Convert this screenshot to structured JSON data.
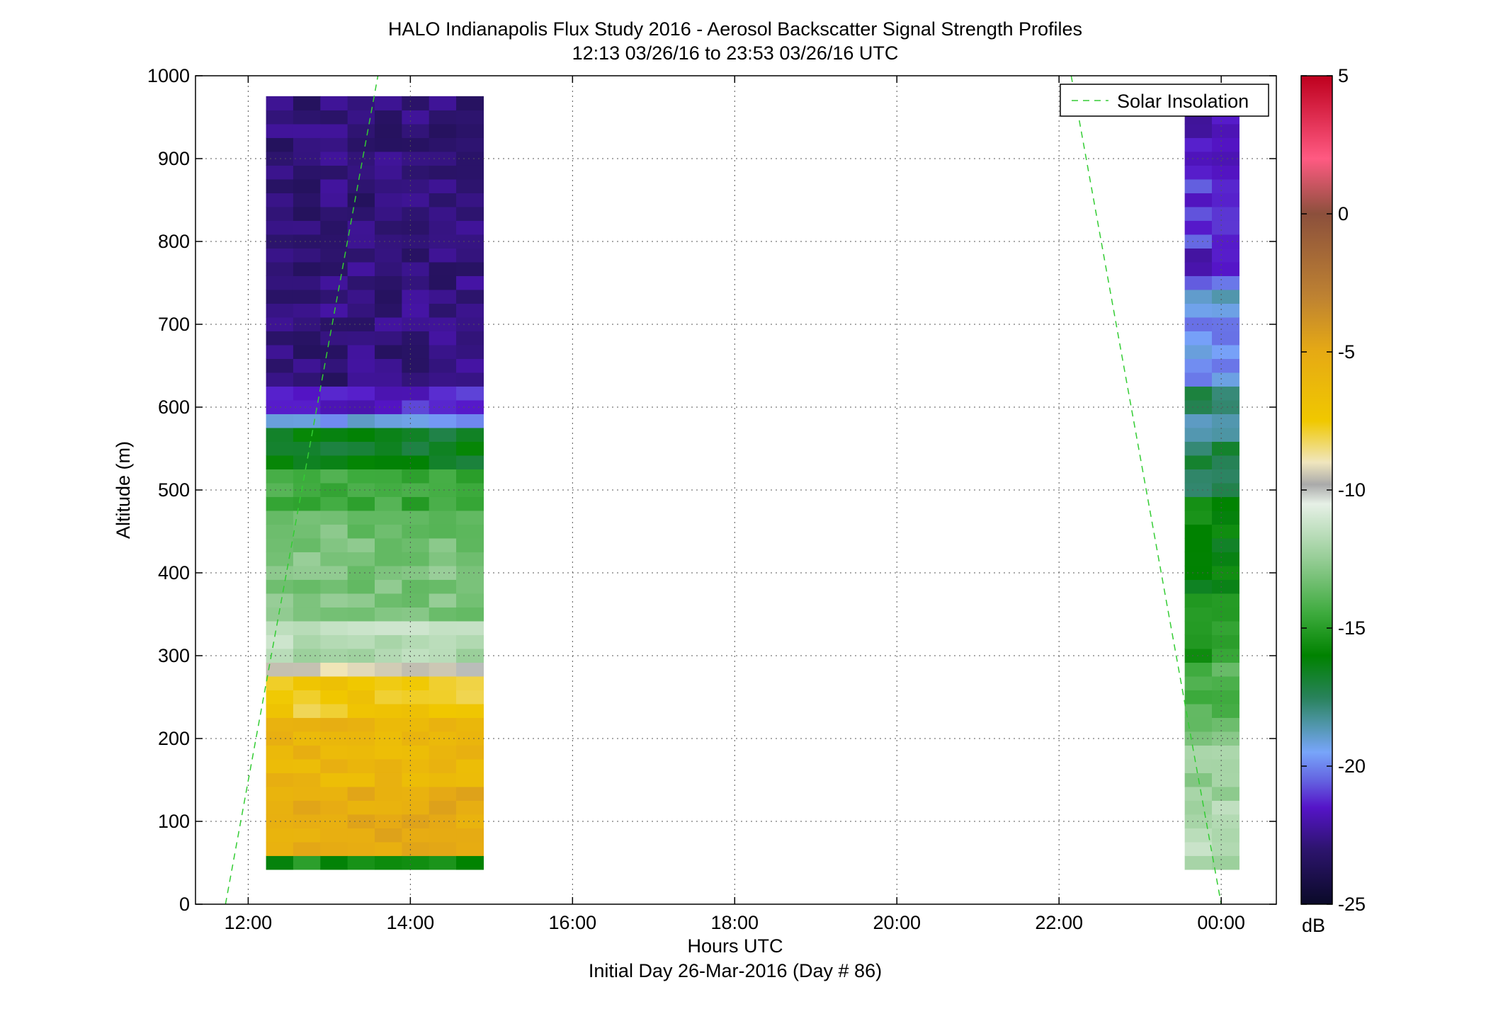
{
  "title": "HALO Indianapolis Flux Study 2016 - Aerosol Backscatter Signal Strength Profiles",
  "subtitle": "12:13 03/26/16 to 23:53 03/26/16  UTC",
  "xlabel": "Hours UTC",
  "footer": "Initial Day 26-Mar-2016 (Day # 86)",
  "ylabel": "Altitude (m)",
  "colorbar": {
    "unit": "dB",
    "min": -25,
    "max": 5,
    "ticks": [
      "5",
      "0",
      "-5",
      "-10",
      "-15",
      "-20",
      "-25"
    ]
  },
  "chart_data": {
    "type": "heatmap",
    "title": "HALO Indianapolis Flux Study 2016 - Aerosol Backscatter Signal Strength Profiles",
    "subtitle": "12:13 03/26/16 to 23:53 03/26/16  UTC",
    "xlabel": "Hours UTC",
    "ylabel": "Altitude (m)",
    "xlim": [
      11.35,
      24.68
    ],
    "ylim": [
      0,
      1000
    ],
    "x_ticks": [
      12,
      14,
      16,
      18,
      20,
      22,
      24
    ],
    "x_tick_labels": [
      "12:00",
      "14:00",
      "16:00",
      "18:00",
      "20:00",
      "22:00",
      "00:00"
    ],
    "y_ticks": [
      0,
      100,
      200,
      300,
      400,
      500,
      600,
      700,
      800,
      900,
      1000
    ],
    "y_tick_labels": [
      "0",
      "100",
      "200",
      "300",
      "400",
      "500",
      "600",
      "700",
      "800",
      "900",
      "1000"
    ],
    "grid": true,
    "legend_position": "top-right",
    "colorbar_label": "dB",
    "color_range": [
      -25,
      5
    ],
    "altitude_bins_m": [
      50,
      950
    ],
    "block1": {
      "time_start": 12.22,
      "time_end": 14.9,
      "columns": 8,
      "profile": [
        {
          "alt_top": 1000,
          "value": -22.8
        },
        {
          "alt_top": 620,
          "value": -21.5
        },
        {
          "alt_top": 600,
          "value": -19.5
        },
        {
          "alt_top": 570,
          "value": -16.5
        },
        {
          "alt_top": 520,
          "value": -14.5
        },
        {
          "alt_top": 470,
          "value": -13.3
        },
        {
          "alt_top": 420,
          "value": -13.0
        },
        {
          "alt_top": 350,
          "value": -11.8
        },
        {
          "alt_top": 300,
          "value": -9.5
        },
        {
          "alt_top": 270,
          "value": -7.5
        },
        {
          "alt_top": 220,
          "value": -6.0
        },
        {
          "alt_top": 150,
          "value": -5.2
        },
        {
          "alt_top": 65,
          "value": -15.5
        }
      ]
    },
    "block2": {
      "time_start": 23.55,
      "time_end": 24.22,
      "columns": 2,
      "profile": [
        {
          "alt_top": 1000,
          "value": -21.8
        },
        {
          "alt_top": 870,
          "value": -21.0
        },
        {
          "alt_top": 790,
          "value": -22.0
        },
        {
          "alt_top": 760,
          "value": -20.0
        },
        {
          "alt_top": 740,
          "value": -18.6
        },
        {
          "alt_top": 720,
          "value": -19.7
        },
        {
          "alt_top": 640,
          "value": -19.9
        },
        {
          "alt_top": 620,
          "value": -17.7
        },
        {
          "alt_top": 600,
          "value": -18.5
        },
        {
          "alt_top": 560,
          "value": -17.2
        },
        {
          "alt_top": 490,
          "value": -16.0
        },
        {
          "alt_top": 380,
          "value": -15.0
        },
        {
          "alt_top": 300,
          "value": -14.0
        },
        {
          "alt_top": 210,
          "value": -12.5
        },
        {
          "alt_top": 130,
          "value": -11.8
        },
        {
          "alt_top": 50,
          "value": -12.5
        }
      ]
    },
    "series": [
      {
        "name": "Solar Insolation",
        "style": "dashed",
        "color": "#33cc33",
        "segments": [
          {
            "x": [
              11.72,
              13.6
            ],
            "y": [
              0,
              1000
            ]
          },
          {
            "x": [
              22.15,
              24.0
            ],
            "y": [
              1000,
              0
            ]
          }
        ]
      }
    ]
  }
}
